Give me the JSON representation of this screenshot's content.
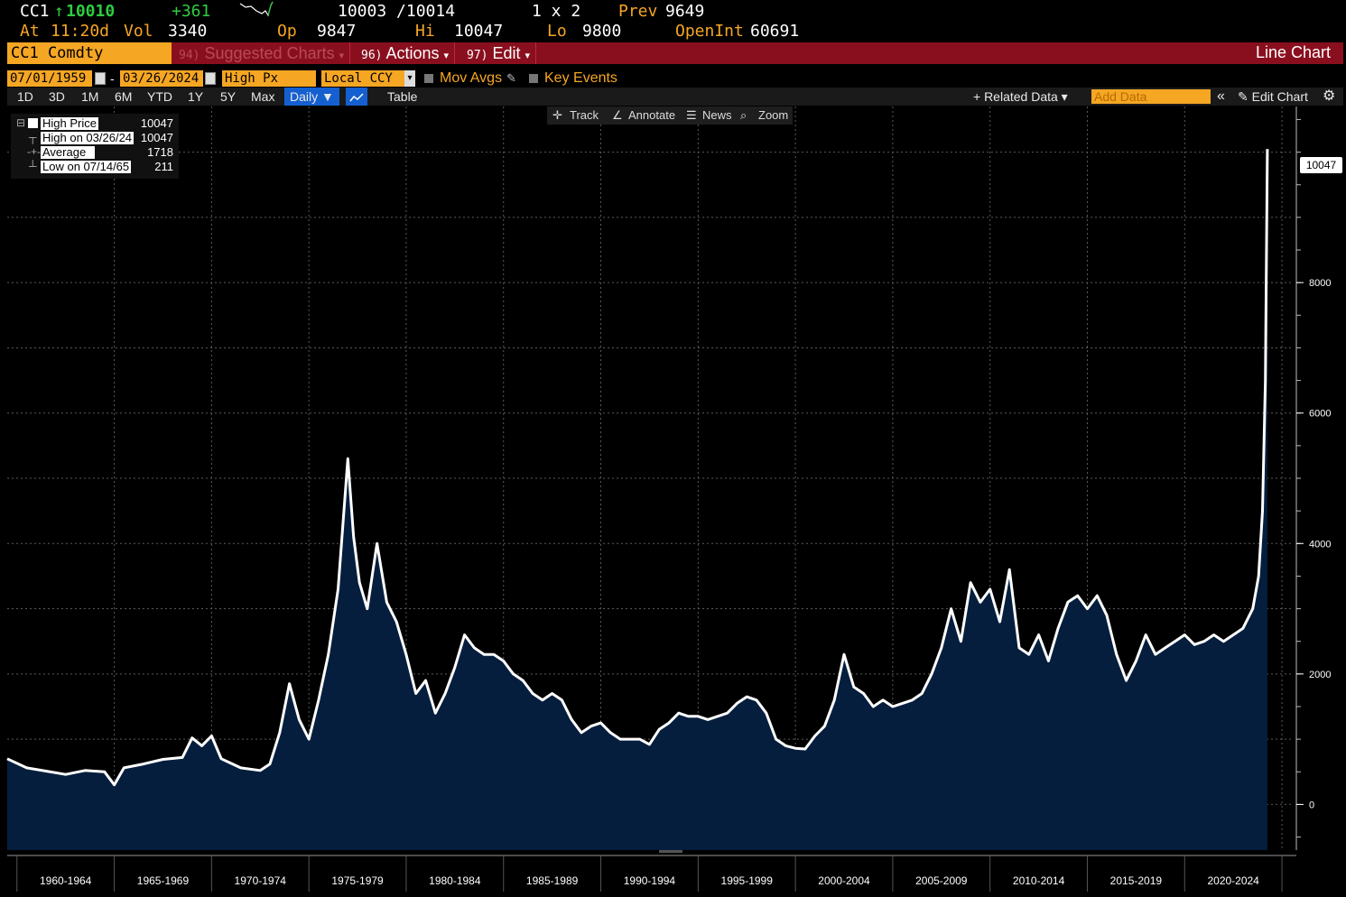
{
  "quote": {
    "ticker": "CC1",
    "arrow": "↑",
    "last": "10010",
    "change": "+361",
    "bid_ask": "10003 /10014",
    "size": "1 x 2",
    "prev_label": "Prev",
    "prev": "9649",
    "at_label": "At",
    "time": "11:20d",
    "vol_label": "Vol",
    "vol": "3340",
    "op_label": "Op",
    "op": "9847",
    "hi_label": "Hi",
    "hi": "10047",
    "lo_label": "Lo",
    "lo": "9800",
    "oi_label": "OpenInt",
    "oi": "60691"
  },
  "menubar": {
    "security": "CC1 Comdty",
    "suggested_num": "94)",
    "suggested": "Suggested Charts",
    "actions_num": "96)",
    "actions": "Actions",
    "edit_num": "97)",
    "edit": "Edit",
    "chart_title": "Line Chart"
  },
  "controls": {
    "start_date": "07/01/1959",
    "dash": "-",
    "end_date": "03/26/2024",
    "field": "High Px",
    "currency": "Local CCY",
    "mov_avgs": "Mov Avgs",
    "key_events": "Key Events"
  },
  "periods": [
    "1D",
    "3D",
    "1M",
    "6M",
    "YTD",
    "1Y",
    "5Y",
    "Max"
  ],
  "period_bar": {
    "frequency": "Daily ▼",
    "table": "Table",
    "related_data": "+ Related Data ▾",
    "add_data_placeholder": "Add Data",
    "collapse": "«",
    "edit_chart": "✎ Edit Chart",
    "settings": "⚙"
  },
  "chart_tools": {
    "track": "Track",
    "annotate": "Annotate",
    "news": "News",
    "zoom": "Zoom"
  },
  "legend": {
    "high_price_label": "High Price",
    "high_price": "10047",
    "high_on_label": "High on 03/26/24",
    "high_on": "10047",
    "average_label": "Average",
    "average": "1718",
    "low_on_label": "Low on 07/14/65",
    "low_on": "211"
  },
  "last_value_tag": "10047",
  "colors": {
    "accent_orange": "#f5a623",
    "menu_red": "#8a0f1e",
    "positive_green": "#2ecc40",
    "area_fill": "#061e3d",
    "line": "#ffffff",
    "active_blue": "#1560d0"
  },
  "chart_data": {
    "type": "area",
    "series": [
      {
        "name": "High Price",
        "x": [
          1959.5,
          1960.5,
          1961.5,
          1962.5,
          1963.5,
          1964.5,
          1965.0,
          1965.5,
          1966.5,
          1967.5,
          1968.5,
          1969.0,
          1969.5,
          1970.0,
          1970.5,
          1971.5,
          1972.5,
          1973.0,
          1973.5,
          1974.0,
          1974.5,
          1975.0,
          1975.5,
          1976.0,
          1976.5,
          1977.0,
          1977.3,
          1977.6,
          1978.0,
          1978.5,
          1979.0,
          1979.5,
          1980.0,
          1980.5,
          1981.0,
          1981.5,
          1982.0,
          1982.5,
          1983.0,
          1983.5,
          1984.0,
          1984.5,
          1985.0,
          1985.5,
          1986.0,
          1986.5,
          1987.0,
          1987.5,
          1988.0,
          1988.5,
          1989.0,
          1989.5,
          1990.0,
          1990.5,
          1991.0,
          1991.5,
          1992.0,
          1992.5,
          1993.0,
          1993.5,
          1994.0,
          1994.5,
          1995.0,
          1995.5,
          1996.0,
          1996.5,
          1997.0,
          1997.5,
          1998.0,
          1998.5,
          1999.0,
          1999.5,
          2000.0,
          2000.5,
          2001.0,
          2001.5,
          2002.0,
          2002.5,
          2003.0,
          2003.5,
          2004.0,
          2004.5,
          2005.0,
          2005.5,
          2006.0,
          2006.5,
          2007.0,
          2007.5,
          2008.0,
          2008.5,
          2009.0,
          2009.5,
          2010.0,
          2010.5,
          2011.0,
          2011.5,
          2012.0,
          2012.5,
          2013.0,
          2013.5,
          2014.0,
          2014.5,
          2015.0,
          2015.5,
          2016.0,
          2016.5,
          2017.0,
          2017.5,
          2018.0,
          2018.5,
          2019.0,
          2019.5,
          2020.0,
          2020.5,
          2021.0,
          2021.5,
          2022.0,
          2022.5,
          2023.0,
          2023.5,
          2023.8,
          2024.0,
          2024.15,
          2024.25
        ],
        "values": [
          700,
          560,
          510,
          460,
          520,
          500,
          300,
          560,
          620,
          690,
          720,
          1020,
          900,
          1050,
          700,
          560,
          520,
          620,
          1100,
          1850,
          1300,
          1000,
          1600,
          2300,
          3300,
          5300,
          4100,
          3400,
          3000,
          4000,
          3100,
          2800,
          2300,
          1700,
          1900,
          1400,
          1700,
          2100,
          2600,
          2400,
          2300,
          2300,
          2200,
          2000,
          1900,
          1700,
          1600,
          1700,
          1600,
          1300,
          1100,
          1200,
          1250,
          1100,
          1000,
          1000,
          1000,
          920,
          1150,
          1250,
          1400,
          1350,
          1350,
          1300,
          1350,
          1400,
          1550,
          1650,
          1600,
          1400,
          1000,
          900,
          860,
          850,
          1050,
          1200,
          1600,
          2300,
          1800,
          1700,
          1500,
          1600,
          1500,
          1550,
          1600,
          1700,
          2000,
          2400,
          3000,
          2500,
          3400,
          3100,
          3300,
          2800,
          3600,
          2400,
          2300,
          2600,
          2200,
          2700,
          3100,
          3200,
          3000,
          3200,
          2900,
          2300,
          1900,
          2200,
          2600,
          2300,
          2400,
          2500,
          2600,
          2450,
          2500,
          2600,
          2500,
          2600,
          2700,
          3000,
          3500,
          4500,
          6500,
          10047
        ]
      }
    ],
    "x_tick_labels": [
      "1960-1964",
      "1965-1969",
      "1970-1974",
      "1975-1979",
      "1980-1984",
      "1985-1989",
      "1990-1994",
      "1995-1999",
      "2000-2004",
      "2005-2009",
      "2010-2014",
      "2015-2019",
      "2020-2024"
    ],
    "y_ticks": [
      0,
      2000,
      4000,
      6000,
      8000
    ],
    "ylim": [
      -700,
      10700
    ],
    "xlim": [
      1959.5,
      2025.6
    ],
    "grid": true,
    "y_axis_side": "right"
  }
}
